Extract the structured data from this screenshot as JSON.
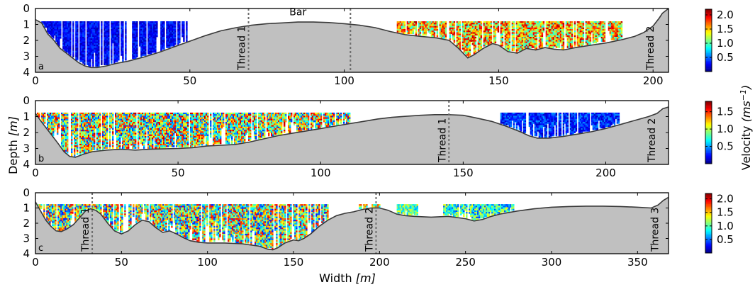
{
  "chart_data": [
    {
      "panel_label": "a",
      "type": "heatmap",
      "xlim": [
        0,
        205
      ],
      "ylim": [
        4,
        0
      ],
      "xticks": [
        0,
        50,
        100,
        150,
        200
      ],
      "yticks": [
        0,
        1,
        2,
        3,
        4
      ],
      "bed_profile": [
        [
          0,
          0.7
        ],
        [
          2,
          0.9
        ],
        [
          4,
          1.6
        ],
        [
          6,
          2.0
        ],
        [
          8,
          2.5
        ],
        [
          10,
          2.8
        ],
        [
          12,
          3.1
        ],
        [
          14,
          3.4
        ],
        [
          16,
          3.6
        ],
        [
          18,
          3.7
        ],
        [
          20,
          3.7
        ],
        [
          23,
          3.6
        ],
        [
          26,
          3.45
        ],
        [
          30,
          3.3
        ],
        [
          35,
          3.05
        ],
        [
          40,
          2.75
        ],
        [
          45,
          2.4
        ],
        [
          50,
          2.05
        ],
        [
          55,
          1.7
        ],
        [
          60,
          1.4
        ],
        [
          65,
          1.2
        ],
        [
          70,
          1.05
        ],
        [
          75,
          0.95
        ],
        [
          80,
          0.9
        ],
        [
          85,
          0.85
        ],
        [
          90,
          0.85
        ],
        [
          95,
          0.88
        ],
        [
          100,
          0.95
        ],
        [
          105,
          1.05
        ],
        [
          110,
          1.2
        ],
        [
          115,
          1.45
        ],
        [
          120,
          1.65
        ],
        [
          125,
          1.75
        ],
        [
          130,
          1.85
        ],
        [
          134,
          2.0
        ],
        [
          137,
          2.5
        ],
        [
          139,
          2.9
        ],
        [
          140,
          3.1
        ],
        [
          142,
          2.9
        ],
        [
          145,
          2.5
        ],
        [
          148,
          2.2
        ],
        [
          150,
          2.3
        ],
        [
          153,
          2.7
        ],
        [
          156,
          2.8
        ],
        [
          159,
          2.5
        ],
        [
          162,
          2.6
        ],
        [
          165,
          2.45
        ],
        [
          168,
          2.55
        ],
        [
          171,
          2.6
        ],
        [
          175,
          2.45
        ],
        [
          180,
          2.3
        ],
        [
          185,
          2.15
        ],
        [
          190,
          1.95
        ],
        [
          194,
          1.75
        ],
        [
          197,
          1.5
        ],
        [
          200,
          1.1
        ],
        [
          202,
          0.6
        ],
        [
          203,
          0.3
        ],
        [
          205,
          0
        ]
      ],
      "velocity_regions": [
        {
          "x": [
            0.5,
            49
          ],
          "velocity_range": [
            0.1,
            0.45
          ],
          "top_depth": 0.8
        },
        {
          "x": [
            117,
            190
          ],
          "velocity_range": [
            0.8,
            2.1
          ],
          "top_depth": 0.8
        }
      ],
      "threads": [
        {
          "label": "Thread 1",
          "x": 69,
          "line": true
        },
        {
          "label": "",
          "x": 102,
          "line": true
        },
        {
          "label": "Thread 2",
          "x": 199,
          "line": false
        }
      ],
      "annotations": [
        {
          "text": "Bar",
          "x": 85,
          "y": 0.2
        }
      ],
      "colorbar": {
        "range": [
          0,
          2.2
        ],
        "ticks": [
          "0.5",
          "1.0",
          "1.5",
          "2.0"
        ],
        "tick_values": [
          0.5,
          1.0,
          1.5,
          2.0
        ]
      }
    },
    {
      "panel_label": "b",
      "type": "heatmap",
      "xlim": [
        0,
        222
      ],
      "ylim": [
        4,
        0
      ],
      "xticks": [
        0,
        50,
        100,
        150,
        200
      ],
      "yticks": [
        0,
        1,
        2,
        3,
        4
      ],
      "bed_profile": [
        [
          0,
          0.8
        ],
        [
          2,
          1.3
        ],
        [
          5,
          2.0
        ],
        [
          8,
          2.7
        ],
        [
          10,
          3.2
        ],
        [
          12,
          3.5
        ],
        [
          14,
          3.55
        ],
        [
          17,
          3.35
        ],
        [
          20,
          3.2
        ],
        [
          25,
          3.1
        ],
        [
          30,
          3.05
        ],
        [
          35,
          3.1
        ],
        [
          40,
          3.05
        ],
        [
          50,
          3.0
        ],
        [
          55,
          2.95
        ],
        [
          60,
          2.85
        ],
        [
          65,
          2.8
        ],
        [
          70,
          2.75
        ],
        [
          75,
          2.6
        ],
        [
          80,
          2.4
        ],
        [
          85,
          2.2
        ],
        [
          90,
          2.05
        ],
        [
          95,
          1.9
        ],
        [
          100,
          1.75
        ],
        [
          105,
          1.6
        ],
        [
          110,
          1.45
        ],
        [
          115,
          1.3
        ],
        [
          120,
          1.15
        ],
        [
          125,
          1.05
        ],
        [
          130,
          0.98
        ],
        [
          135,
          0.92
        ],
        [
          140,
          0.88
        ],
        [
          145,
          0.88
        ],
        [
          150,
          0.92
        ],
        [
          155,
          1.1
        ],
        [
          160,
          1.3
        ],
        [
          165,
          1.6
        ],
        [
          170,
          1.95
        ],
        [
          173,
          2.2
        ],
        [
          176,
          2.35
        ],
        [
          180,
          2.35
        ],
        [
          185,
          2.25
        ],
        [
          190,
          2.1
        ],
        [
          195,
          1.95
        ],
        [
          200,
          1.75
        ],
        [
          205,
          1.5
        ],
        [
          210,
          1.25
        ],
        [
          215,
          1.0
        ],
        [
          218,
          0.8
        ],
        [
          220,
          0.5
        ],
        [
          222,
          0.4
        ]
      ],
      "velocity_regions": [
        {
          "x": [
            0.5,
            110
          ],
          "velocity_range": [
            0.3,
            1.7
          ],
          "top_depth": 0.75
        },
        {
          "x": [
            163,
            205
          ],
          "velocity_range": [
            0.1,
            0.5
          ],
          "top_depth": 0.75
        }
      ],
      "threads": [
        {
          "label": "Thread 1",
          "x": 145,
          "line": true
        },
        {
          "label": "Thread 2",
          "x": 216,
          "line": false
        }
      ],
      "colorbar": {
        "range": [
          0,
          1.8
        ],
        "ticks": [
          "0.5",
          "1.0",
          "1.5"
        ],
        "tick_values": [
          0.5,
          1.0,
          1.5
        ]
      }
    },
    {
      "panel_label": "c",
      "type": "heatmap",
      "xlim": [
        0,
        368
      ],
      "ylim": [
        4,
        0
      ],
      "xticks": [
        0,
        50,
        100,
        150,
        200,
        250,
        300,
        350
      ],
      "yticks": [
        0,
        1,
        2,
        3,
        4
      ],
      "bed_profile": [
        [
          0,
          0.6
        ],
        [
          3,
          1.2
        ],
        [
          6,
          1.8
        ],
        [
          9,
          2.2
        ],
        [
          12,
          2.5
        ],
        [
          15,
          2.55
        ],
        [
          18,
          2.4
        ],
        [
          22,
          2.1
        ],
        [
          26,
          1.6
        ],
        [
          29,
          1.2
        ],
        [
          32,
          1.05
        ],
        [
          35,
          1.15
        ],
        [
          38,
          1.4
        ],
        [
          42,
          2.0
        ],
        [
          46,
          2.5
        ],
        [
          50,
          2.7
        ],
        [
          54,
          2.5
        ],
        [
          58,
          2.1
        ],
        [
          62,
          1.8
        ],
        [
          66,
          1.9
        ],
        [
          70,
          2.3
        ],
        [
          74,
          2.6
        ],
        [
          78,
          2.5
        ],
        [
          82,
          2.7
        ],
        [
          86,
          2.95
        ],
        [
          90,
          3.15
        ],
        [
          95,
          3.25
        ],
        [
          100,
          3.3
        ],
        [
          110,
          3.3
        ],
        [
          120,
          3.35
        ],
        [
          130,
          3.5
        ],
        [
          135,
          3.7
        ],
        [
          138,
          3.75
        ],
        [
          141,
          3.6
        ],
        [
          145,
          3.3
        ],
        [
          150,
          3.1
        ],
        [
          153,
          3.15
        ],
        [
          156,
          3.0
        ],
        [
          160,
          2.7
        ],
        [
          165,
          2.2
        ],
        [
          170,
          1.8
        ],
        [
          175,
          1.5
        ],
        [
          180,
          1.35
        ],
        [
          185,
          1.25
        ],
        [
          190,
          1.1
        ],
        [
          195,
          1.0
        ],
        [
          200,
          1.0
        ],
        [
          205,
          1.15
        ],
        [
          210,
          1.4
        ],
        [
          215,
          1.5
        ],
        [
          220,
          1.55
        ],
        [
          230,
          1.6
        ],
        [
          240,
          1.55
        ],
        [
          250,
          1.7
        ],
        [
          255,
          1.85
        ],
        [
          260,
          1.75
        ],
        [
          265,
          1.55
        ],
        [
          270,
          1.4
        ],
        [
          280,
          1.2
        ],
        [
          290,
          1.05
        ],
        [
          300,
          0.95
        ],
        [
          310,
          0.9
        ],
        [
          320,
          0.88
        ],
        [
          330,
          0.88
        ],
        [
          340,
          0.9
        ],
        [
          350,
          0.95
        ],
        [
          358,
          1.0
        ],
        [
          362,
          0.8
        ],
        [
          365,
          0.5
        ],
        [
          368,
          0.3
        ]
      ],
      "velocity_regions": [
        {
          "x": [
            0.5,
            170
          ],
          "velocity_range": [
            0.3,
            2.0
          ],
          "top_depth": 0.75
        },
        {
          "x": [
            188,
            200
          ],
          "velocity_range": [
            0.8,
            1.8
          ],
          "top_depth": 0.75
        },
        {
          "x": [
            210,
            222
          ],
          "velocity_range": [
            0.6,
            1.4
          ],
          "top_depth": 0.75
        },
        {
          "x": [
            237,
            278
          ],
          "velocity_range": [
            0.4,
            1.4
          ],
          "top_depth": 0.75
        }
      ],
      "threads": [
        {
          "label": "Thread 1",
          "x": 33,
          "line": true
        },
        {
          "label": "Thread 2",
          "x": 198,
          "line": true
        },
        {
          "label": "Thread 3",
          "x": 360,
          "line": false
        }
      ],
      "colorbar": {
        "range": [
          0,
          2.2
        ],
        "ticks": [
          "0.5",
          "1.0",
          "1.5",
          "2.0"
        ],
        "tick_values": [
          0.5,
          1.0,
          1.5,
          2.0
        ]
      }
    }
  ],
  "labels": {
    "ylabel_text": "Depth",
    "ylabel_unit": "[m]",
    "xlabel_text": "Width",
    "xlabel_unit": "[m]",
    "cbar_label_text": "Velocity",
    "cbar_label_unit": "(ms",
    "cbar_label_exp": "−1",
    "cbar_label_close": ")"
  },
  "colors": {
    "bed_fill": "#c0c0c0",
    "bed_line": "#3a3a3a",
    "thread_line": "#6e6e6e",
    "colormap": "jet"
  }
}
